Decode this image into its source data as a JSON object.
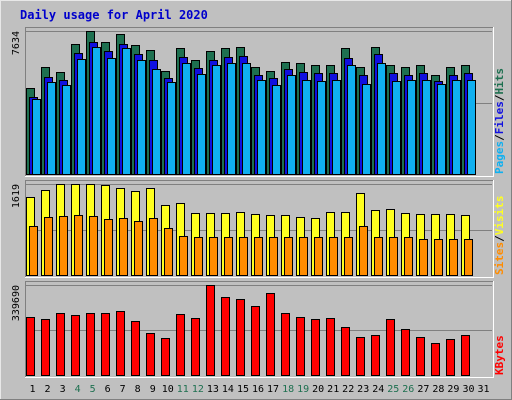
{
  "title": "Daily usage for April 2020",
  "colors": {
    "hits": "#1e7050",
    "files": "#1010e0",
    "pages": "#10b0f0",
    "visits": "#ffff20",
    "sites": "#ff8c00",
    "kbytes": "#ff0000",
    "title": "#0000cc",
    "background": "#c0c0c0",
    "weekend_label": "#1e7050"
  },
  "chart_data": [
    {
      "type": "bar",
      "name": "hits-files-pages",
      "categories": [
        "1",
        "2",
        "3",
        "4",
        "5",
        "6",
        "7",
        "8",
        "9",
        "10",
        "11",
        "12",
        "13",
        "14",
        "15",
        "16",
        "17",
        "18",
        "19",
        "20",
        "21",
        "22",
        "23",
        "24",
        "25",
        "26",
        "27",
        "28",
        "29",
        "30",
        "31"
      ],
      "ylabel_tick": "7634",
      "ylim": [
        0,
        7634
      ],
      "legend_labels": [
        "Pages",
        "Files",
        "Hits"
      ],
      "series": [
        {
          "name": "Hits",
          "color_key": "hits",
          "values": [
            4600,
            5700,
            5450,
            6950,
            7634,
            7050,
            7500,
            6900,
            6600,
            5500,
            6700,
            6100,
            6550,
            6700,
            6800,
            5700,
            5500,
            6000,
            5900,
            5800,
            5800,
            6750,
            5700,
            6800,
            5800,
            5700,
            5800,
            5300,
            5700,
            5800,
            null
          ]
        },
        {
          "name": "Files",
          "color_key": "files",
          "values": [
            4100,
            5200,
            5000,
            6450,
            7050,
            6550,
            6950,
            6400,
            6100,
            5100,
            6250,
            5650,
            6100,
            6250,
            6300,
            5300,
            5100,
            5600,
            5450,
            5400,
            5400,
            6200,
            5300,
            6400,
            5400,
            5300,
            5400,
            4950,
            5300,
            5400,
            null
          ]
        },
        {
          "name": "Pages",
          "color_key": "pages",
          "values": [
            4000,
            4900,
            4750,
            6150,
            6800,
            6200,
            6700,
            6100,
            5600,
            4900,
            5950,
            5350,
            5800,
            5900,
            5900,
            5000,
            4750,
            5300,
            5000,
            4950,
            5000,
            5800,
            4800,
            5900,
            4950,
            5000,
            5000,
            4800,
            5000,
            5000,
            null
          ]
        }
      ]
    },
    {
      "type": "bar",
      "name": "visits-sites",
      "categories": [
        "1",
        "2",
        "3",
        "4",
        "5",
        "6",
        "7",
        "8",
        "9",
        "10",
        "11",
        "12",
        "13",
        "14",
        "15",
        "16",
        "17",
        "18",
        "19",
        "20",
        "21",
        "22",
        "23",
        "24",
        "25",
        "26",
        "27",
        "28",
        "29",
        "30",
        "31"
      ],
      "ylabel_tick": "1619",
      "ylim": [
        0,
        1619
      ],
      "legend_labels": [
        "Sites",
        "Visits"
      ],
      "series": [
        {
          "name": "Visits",
          "color_key": "visits",
          "values": [
            1380,
            1520,
            1619,
            1619,
            1619,
            1600,
            1550,
            1500,
            1550,
            1240,
            1280,
            1100,
            1100,
            1100,
            1120,
            1090,
            1060,
            1060,
            1040,
            1020,
            1120,
            1120,
            1450,
            1160,
            1180,
            1100,
            1080,
            1080,
            1080,
            1070,
            null
          ]
        },
        {
          "name": "Sites",
          "color_key": "sites",
          "values": [
            870,
            1040,
            1050,
            1060,
            1050,
            990,
            1020,
            960,
            1020,
            830,
            700,
            680,
            680,
            680,
            680,
            680,
            680,
            680,
            680,
            680,
            680,
            680,
            880,
            680,
            680,
            680,
            640,
            640,
            640,
            640,
            null
          ]
        }
      ]
    },
    {
      "type": "bar",
      "name": "kbytes",
      "categories": [
        "1",
        "2",
        "3",
        "4",
        "5",
        "6",
        "7",
        "8",
        "9",
        "10",
        "11",
        "12",
        "13",
        "14",
        "15",
        "16",
        "17",
        "18",
        "19",
        "20",
        "21",
        "22",
        "23",
        "24",
        "25",
        "26",
        "27",
        "28",
        "29",
        "30",
        "31"
      ],
      "ylabel_tick": "339690",
      "ylim": [
        0,
        339690
      ],
      "legend_labels": [
        "KBytes"
      ],
      "series": [
        {
          "name": "KBytes",
          "color_key": "kbytes",
          "values": [
            220000,
            210000,
            235000,
            225000,
            235000,
            235000,
            240000,
            205000,
            160000,
            140000,
            230000,
            215000,
            339690,
            295000,
            285000,
            260000,
            310000,
            235000,
            220000,
            210000,
            215000,
            180000,
            145000,
            150000,
            210000,
            175000,
            145000,
            120000,
            135000,
            150000,
            null
          ]
        }
      ]
    }
  ],
  "x_labels": [
    {
      "text": "1",
      "weekend": false
    },
    {
      "text": "2",
      "weekend": false
    },
    {
      "text": "3",
      "weekend": false
    },
    {
      "text": "4",
      "weekend": true
    },
    {
      "text": "5",
      "weekend": true
    },
    {
      "text": "6",
      "weekend": false
    },
    {
      "text": "7",
      "weekend": false
    },
    {
      "text": "8",
      "weekend": false
    },
    {
      "text": "9",
      "weekend": false
    },
    {
      "text": "10",
      "weekend": false
    },
    {
      "text": "11",
      "weekend": true
    },
    {
      "text": "12",
      "weekend": true
    },
    {
      "text": "13",
      "weekend": false
    },
    {
      "text": "14",
      "weekend": false
    },
    {
      "text": "15",
      "weekend": false
    },
    {
      "text": "16",
      "weekend": false
    },
    {
      "text": "17",
      "weekend": false
    },
    {
      "text": "18",
      "weekend": true
    },
    {
      "text": "19",
      "weekend": true
    },
    {
      "text": "20",
      "weekend": false
    },
    {
      "text": "21",
      "weekend": false
    },
    {
      "text": "22",
      "weekend": false
    },
    {
      "text": "23",
      "weekend": false
    },
    {
      "text": "24",
      "weekend": false
    },
    {
      "text": "25",
      "weekend": true
    },
    {
      "text": "26",
      "weekend": true
    },
    {
      "text": "27",
      "weekend": false
    },
    {
      "text": "28",
      "weekend": false
    },
    {
      "text": "29",
      "weekend": false
    },
    {
      "text": "30",
      "weekend": false
    },
    {
      "text": "31",
      "weekend": false
    }
  ]
}
